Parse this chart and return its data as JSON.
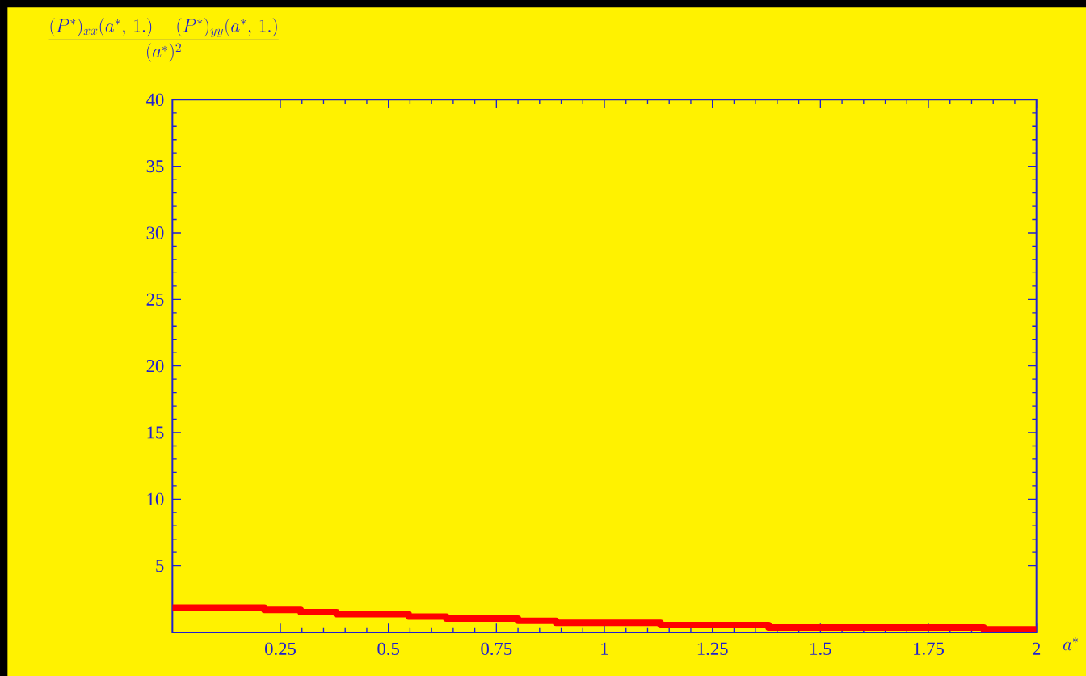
{
  "chart_data": {
    "type": "step",
    "xlabel": "a^{*}",
    "ylabel": "\\frac{(P^{*})_{xx}(a^{*},\\,1.)-(P^{*})_{yy}(a^{*},\\,1.)}{(a^{*})^{2}}",
    "x": [
      0,
      0.213,
      0.297,
      0.38,
      0.547,
      0.634,
      0.8,
      0.888,
      1.13,
      1.38,
      1.878,
      2
    ],
    "values": [
      1.85,
      1.69,
      1.52,
      1.36,
      1.19,
      1.03,
      0.87,
      0.71,
      0.55,
      0.37,
      0.22,
      0.22
    ],
    "color": "#ff0000",
    "xlim": [
      0,
      2
    ],
    "ylim": [
      0,
      40
    ],
    "xticks": [
      0.25,
      0.5,
      0.75,
      1,
      1.25,
      1.5,
      1.75,
      2
    ],
    "yticks": [
      5,
      10,
      15,
      20,
      25,
      30,
      35,
      40
    ]
  }
}
